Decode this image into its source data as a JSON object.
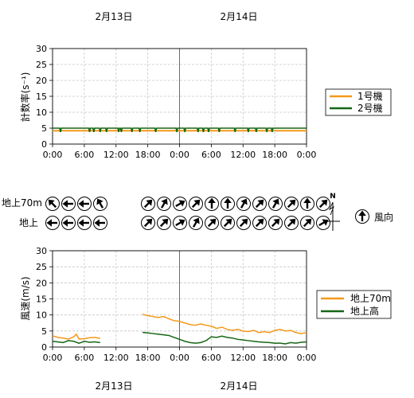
{
  "colors": {
    "orange": "#f39a1a",
    "green": "#156614",
    "grid": "#c8c8c8",
    "midline": "#6b6b6b",
    "axis": "#000000"
  },
  "dates": {
    "d1": "2月13日",
    "d2": "2月14日"
  },
  "wind_section": {
    "row_labels": {
      "upper": "地上70m",
      "ground": "地上"
    },
    "compass_n": "N",
    "legend_label": "風向",
    "legend_icon": "arrow-up-circle-icon",
    "upper_day1": [
      315,
      270,
      270,
      330
    ],
    "upper_day2": [
      45,
      30,
      60,
      45,
      0,
      0,
      30,
      45,
      30,
      45,
      0,
      45
    ],
    "ground_day1": [
      270,
      270,
      270,
      270
    ],
    "ground_day2": [
      45,
      45,
      60,
      30,
      45,
      45,
      45,
      45,
      45,
      45,
      45,
      60
    ]
  },
  "chart_data": [
    {
      "type": "line",
      "ylabel": "計数率(s⁻¹)",
      "ylim": [
        0,
        30
      ],
      "yticks": [
        "0",
        "5",
        "10",
        "15",
        "20",
        "25",
        "30"
      ],
      "xticks": [
        "0:00",
        "6:00",
        "12:00",
        "18:00",
        "0:00",
        "6:00",
        "12:00",
        "18:00",
        "0:00"
      ],
      "x_range_hours": [
        0,
        48
      ],
      "series": [
        {
          "name": "1号機",
          "color": "#f39a1a",
          "values": [
            4.2,
            4.2
          ]
        },
        {
          "name": "2号機",
          "color": "#156614",
          "values": [
            5.0,
            5.0
          ],
          "dips_hours": [
            1.5,
            7,
            7.8,
            9,
            10.2,
            12.5,
            13,
            15,
            16.5,
            19.5,
            23.5,
            25,
            27.5,
            28.5,
            29.5,
            31.5,
            34.5,
            37,
            38.5,
            40.5,
            41.5
          ],
          "dip_value": 3.8
        }
      ]
    },
    {
      "type": "line",
      "ylabel": "風速(m/s)",
      "ylim": [
        0,
        30
      ],
      "yticks": [
        "0",
        "5",
        "10",
        "15",
        "20",
        "25",
        "30"
      ],
      "xticks": [
        "0:00",
        "6:00",
        "12:00",
        "18:00",
        "0:00",
        "6:00",
        "12:00",
        "18:00",
        "0:00"
      ],
      "x_range_hours": [
        0,
        48
      ],
      "series": [
        {
          "name": "地上70m",
          "color": "#f39a1a",
          "segments": [
            {
              "x": [
                0,
                1,
                2,
                3,
                4,
                4.5,
                5,
                6,
                7,
                8,
                9
              ],
              "y": [
                3.5,
                3.0,
                2.8,
                2.5,
                3.2,
                4.0,
                2.5,
                2.6,
                2.9,
                3.0,
                2.7
              ]
            },
            {
              "x": [
                17,
                18,
                19,
                20,
                21,
                22,
                23,
                24,
                25,
                26,
                27,
                28,
                29,
                30,
                31,
                32,
                33,
                34,
                35,
                36,
                37,
                38,
                39,
                40,
                41,
                42,
                43,
                44,
                45,
                46,
                47,
                48
              ],
              "y": [
                10.2,
                9.8,
                9.5,
                9.2,
                9.5,
                8.8,
                8.2,
                8.0,
                7.5,
                7.0,
                6.8,
                7.2,
                6.8,
                6.5,
                5.8,
                6.2,
                5.5,
                5.2,
                5.5,
                5.0,
                4.8,
                5.2,
                4.5,
                4.8,
                4.5,
                5.2,
                5.5,
                5.0,
                5.2,
                4.5,
                4.2,
                4.5
              ]
            }
          ]
        },
        {
          "name": "地上高",
          "color": "#156614",
          "segments": [
            {
              "x": [
                0,
                1,
                2,
                3,
                4,
                5,
                6,
                7,
                8,
                9
              ],
              "y": [
                1.8,
                1.6,
                1.4,
                2.0,
                1.8,
                1.2,
                1.8,
                1.5,
                1.6,
                1.4
              ]
            },
            {
              "x": [
                17,
                18,
                19,
                20,
                21,
                22,
                23,
                24,
                25,
                26,
                27,
                28,
                29,
                30,
                31,
                32,
                33,
                34,
                35,
                36,
                37,
                38,
                39,
                40,
                41,
                42,
                43,
                44,
                45,
                46,
                47,
                48
              ],
              "y": [
                4.6,
                4.4,
                4.2,
                4.0,
                3.8,
                3.6,
                3.0,
                2.4,
                1.8,
                1.4,
                1.2,
                1.4,
                2.0,
                3.2,
                3.0,
                3.4,
                3.0,
                2.8,
                2.4,
                2.2,
                2.0,
                1.8,
                1.6,
                1.5,
                1.4,
                1.2,
                1.2,
                1.0,
                1.4,
                1.2,
                1.5,
                1.6
              ]
            }
          ]
        }
      ]
    }
  ]
}
